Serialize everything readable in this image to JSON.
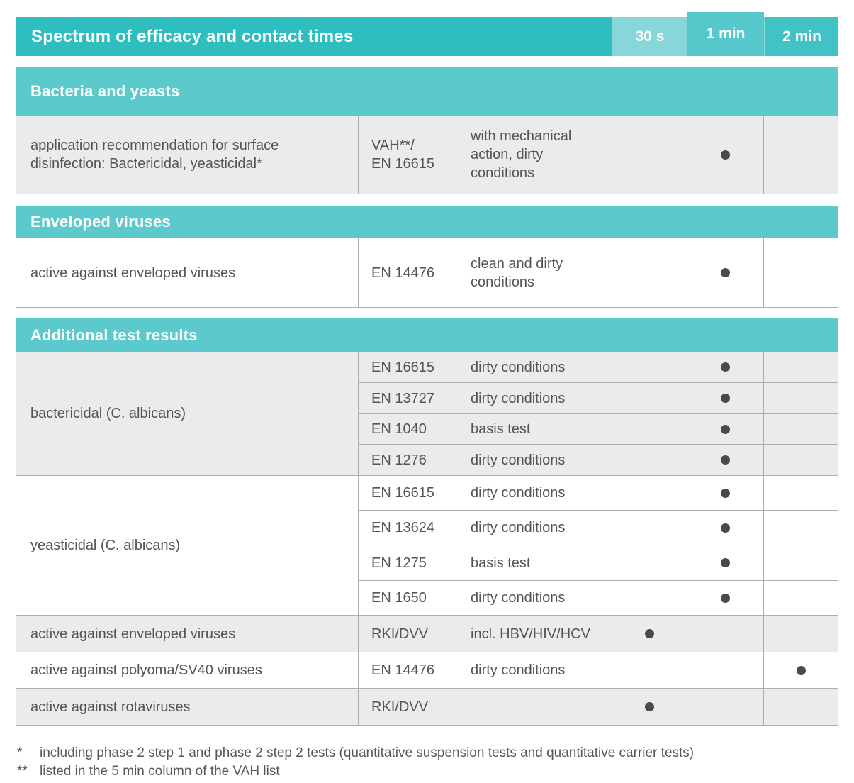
{
  "colors": {
    "header_teal": "#2fbec0",
    "section_teal": "#5cc9cc",
    "col_30s": "#87d6d9",
    "col_1min": "#56c8cb",
    "col_2min": "#41c2c5",
    "row_gray": "#ebebed",
    "border": "#aeaeae",
    "text": "#545456",
    "footnote_text": "#58585a",
    "dot": "#4a4a4a"
  },
  "header": {
    "title": "Spectrum of efficacy and contact times",
    "time_columns": [
      "30 s",
      "1 min",
      "2 min"
    ]
  },
  "sections": [
    {
      "title": "Bacteria and yeasts",
      "rows": [
        {
          "description": "application recommendation for surface disinfection: Bactericidal, yeasticidal*",
          "standard": "VAH**/\nEN 16615",
          "conditions": "with mechanical action, dirty conditions",
          "dot": "1 min"
        }
      ]
    },
    {
      "title": "Enveloped viruses",
      "rows": [
        {
          "description": "active against enveloped viruses",
          "standard": "EN 14476",
          "conditions": "clean and dirty conditions",
          "dot": "1 min"
        }
      ]
    },
    {
      "title": "Additional test results",
      "groups": [
        {
          "label": "bactericidal (C. albicans)",
          "rows": [
            {
              "standard": "EN 16615",
              "conditions": "dirty conditions",
              "dot": "1 min"
            },
            {
              "standard": "EN 13727",
              "conditions": "dirty conditions",
              "dot": "1 min"
            },
            {
              "standard": "EN 1040",
              "conditions": "basis test",
              "dot": "1 min"
            },
            {
              "standard": "EN 1276",
              "conditions": "dirty conditions",
              "dot": "1 min"
            }
          ]
        },
        {
          "label": "yeasticidal (C. albicans)",
          "rows": [
            {
              "standard": "EN 16615",
              "conditions": "dirty conditions",
              "dot": "1 min"
            },
            {
              "standard": "EN 13624",
              "conditions": "dirty conditions",
              "dot": "1 min"
            },
            {
              "standard": "EN 1275",
              "conditions": "basis test",
              "dot": "1 min"
            },
            {
              "standard": "EN 1650",
              "conditions": "dirty conditions",
              "dot": "1 min"
            }
          ]
        }
      ],
      "rows": [
        {
          "description": "active against enveloped viruses",
          "standard": "RKI/DVV",
          "conditions": "incl. HBV/HIV/HCV",
          "dot": "30 s"
        },
        {
          "description": "active against polyoma/SV40 viruses",
          "standard": "EN 14476",
          "conditions": "dirty conditions",
          "dot": "2 min"
        },
        {
          "description": "active against rotaviruses",
          "standard": "RKI/DVV",
          "conditions": "",
          "dot": "30 s"
        }
      ]
    }
  ],
  "footnotes": [
    {
      "marker": "*",
      "text": "including phase 2 step 1 and phase 2 step 2 tests  (quantitative suspension tests and quantitative carrier tests)"
    },
    {
      "marker": "**",
      "text": "listed in the 5 min column of the VAH list"
    }
  ]
}
